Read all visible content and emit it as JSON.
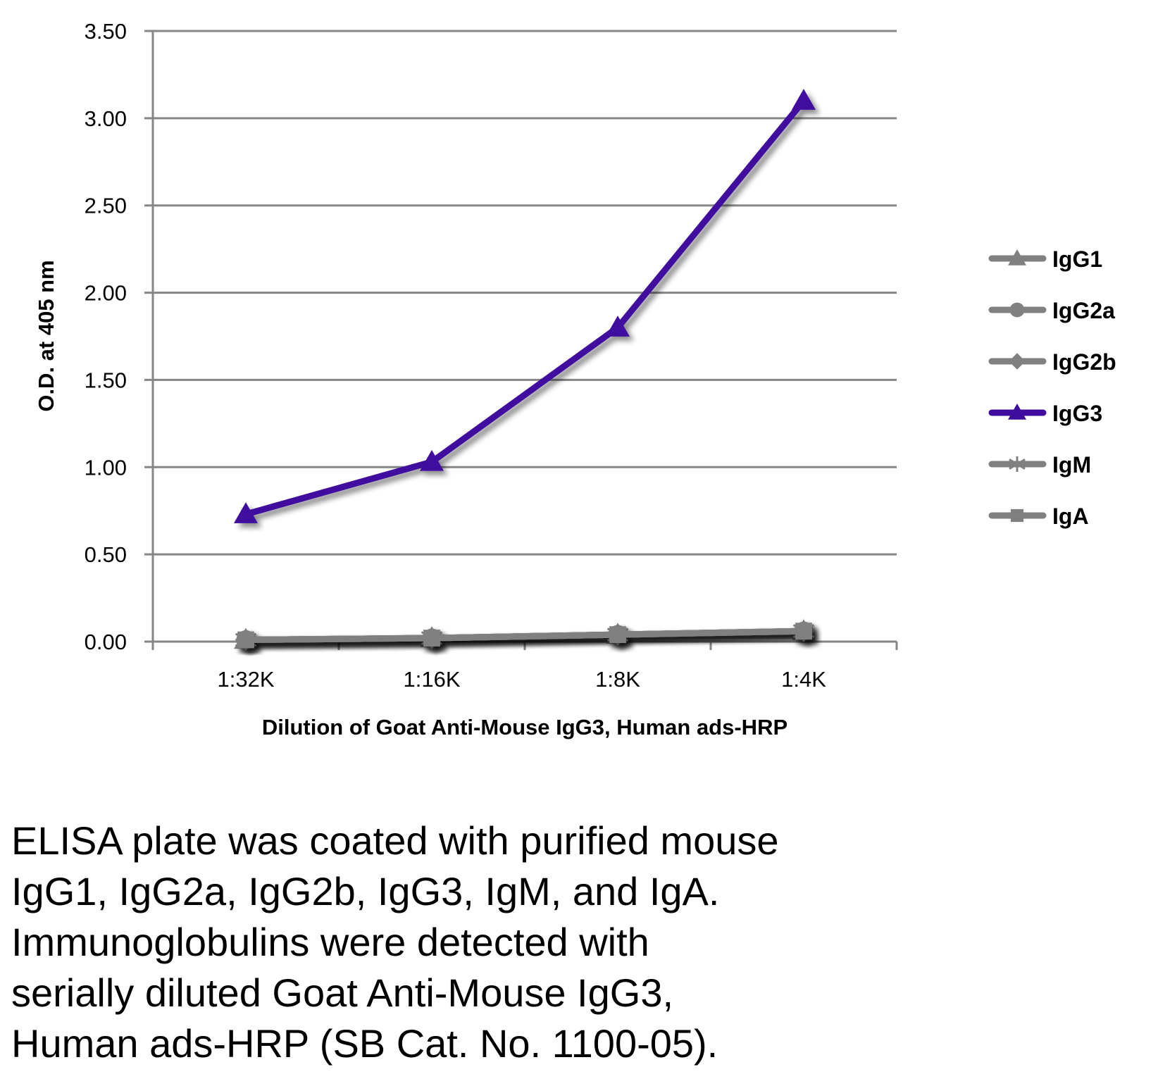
{
  "chart_data": {
    "type": "line",
    "title": "",
    "xlabel": "Dilution of Goat Anti-Mouse IgG3, Human ads-HRP",
    "ylabel": "O.D. at 405 nm",
    "categories": [
      "1:32K",
      "1:16K",
      "1:8K",
      "1:4K"
    ],
    "ylim": [
      0,
      3.5
    ],
    "yticks": [
      "0.00",
      "0.50",
      "1.00",
      "1.50",
      "2.00",
      "2.50",
      "3.00",
      "3.50"
    ],
    "ytick_values": [
      0,
      0.5,
      1.0,
      1.5,
      2.0,
      2.5,
      3.0,
      3.5
    ],
    "grid": true,
    "legend_position": "right",
    "series": [
      {
        "name": "IgG1",
        "marker": "triangle",
        "color": "#808080",
        "values": [
          0.01,
          0.02,
          0.04,
          0.06
        ]
      },
      {
        "name": "IgG2a",
        "marker": "circle",
        "color": "#808080",
        "values": [
          0.01,
          0.02,
          0.04,
          0.06
        ]
      },
      {
        "name": "IgG2b",
        "marker": "diamond",
        "color": "#808080",
        "values": [
          0.01,
          0.02,
          0.04,
          0.06
        ]
      },
      {
        "name": "IgG3",
        "marker": "triangle",
        "color": "#3f0c9e",
        "values": [
          0.73,
          1.03,
          1.8,
          3.1
        ]
      },
      {
        "name": "IgM",
        "marker": "asterisk",
        "color": "#808080",
        "values": [
          0.01,
          0.02,
          0.04,
          0.06
        ]
      },
      {
        "name": "IgA",
        "marker": "square",
        "color": "#808080",
        "values": [
          0.01,
          0.02,
          0.04,
          0.06
        ]
      }
    ],
    "colors": {
      "grid": "#868686",
      "axis": "#868686"
    }
  },
  "caption": {
    "lines": [
      "ELISA plate was coated with purified mouse",
      "IgG1, IgG2a, IgG2b, IgG3, IgM, and IgA.",
      "Immunoglobulins were detected with",
      "serially diluted Goat Anti-Mouse IgG3,",
      "Human ads-HRP (SB Cat. No. 1100-05)."
    ]
  }
}
